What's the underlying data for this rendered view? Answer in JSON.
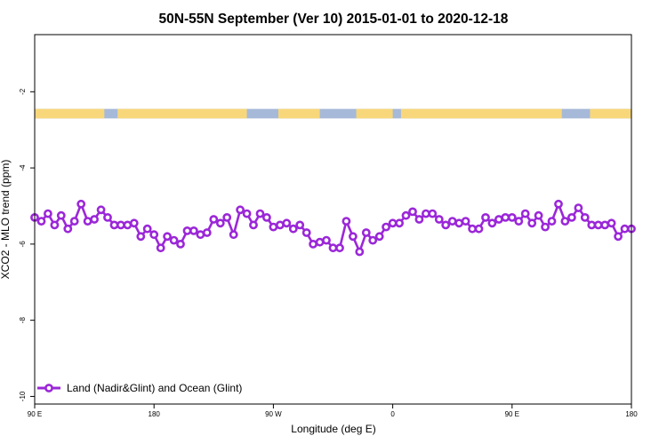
{
  "chart_data": {
    "type": "line",
    "title": "50N-55N September (Ver 10)   2015-01-01 to 2020-12-18",
    "xlabel": "Longitude (deg E)",
    "ylabel": "XCO2 - MLO trend (ppm)",
    "xlim": [
      90,
      450
    ],
    "ylim": [
      -10.2,
      -0.5
    ],
    "x_ticks": [
      {
        "value": 90,
        "label": "90 E"
      },
      {
        "value": 162,
        "label": "180"
      },
      {
        "value": 234,
        "label": "90 W"
      },
      {
        "value": 306,
        "label": "0"
      },
      {
        "value": 378,
        "label": "90 E"
      },
      {
        "value": 450,
        "label": "180"
      }
    ],
    "y_ticks": [
      {
        "value": -2,
        "label": "-2"
      },
      {
        "value": -4,
        "label": "-4"
      },
      {
        "value": -6,
        "label": "-6"
      },
      {
        "value": -8,
        "label": "-8"
      },
      {
        "value": -10,
        "label": "-10"
      }
    ],
    "land_ocean_band": {
      "y_range": [
        -2.7,
        -2.45
      ],
      "land_color": "#f8d77b",
      "ocean_color": "#a6b9d8",
      "land_segments": [
        [
          90,
          132
        ],
        [
          140,
          218
        ],
        [
          237,
          262
        ],
        [
          284,
          306
        ],
        [
          311,
          408
        ],
        [
          425,
          450
        ]
      ]
    },
    "series": [
      {
        "name": "Land (Nadir&Glint) and Ocean (Glint)",
        "color": "#9b27d8",
        "x": [
          90,
          94,
          98,
          102,
          106,
          110,
          114,
          118,
          122,
          126,
          130,
          134,
          138,
          142,
          146,
          150,
          154,
          158,
          162,
          166,
          170,
          174,
          178,
          182,
          186,
          190,
          194,
          198,
          202,
          206,
          210,
          214,
          218,
          222,
          226,
          230,
          234,
          238,
          242,
          246,
          250,
          254,
          258,
          262,
          266,
          270,
          274,
          278,
          282,
          286,
          290,
          294,
          298,
          302,
          306,
          310,
          314,
          318,
          322,
          326,
          330,
          334,
          338,
          342,
          346,
          350,
          354,
          358,
          362,
          366,
          370,
          374,
          378,
          382,
          386,
          390,
          394,
          398,
          402,
          406,
          410,
          414,
          418,
          422,
          426,
          430,
          434,
          438,
          442,
          446,
          450
        ],
        "y": [
          -5.3,
          -5.4,
          -5.2,
          -5.5,
          -5.25,
          -5.6,
          -5.4,
          -4.95,
          -5.4,
          -5.35,
          -5.1,
          -5.3,
          -5.5,
          -5.5,
          -5.5,
          -5.45,
          -5.8,
          -5.6,
          -5.75,
          -6.1,
          -5.8,
          -5.9,
          -6.0,
          -5.65,
          -5.65,
          -5.75,
          -5.7,
          -5.35,
          -5.45,
          -5.3,
          -5.75,
          -5.1,
          -5.2,
          -5.5,
          -5.2,
          -5.3,
          -5.55,
          -5.5,
          -5.45,
          -5.6,
          -5.5,
          -5.7,
          -6.0,
          -5.95,
          -5.9,
          -6.1,
          -6.1,
          -5.4,
          -5.8,
          -6.2,
          -5.7,
          -5.9,
          -5.8,
          -5.55,
          -5.45,
          -5.45,
          -5.25,
          -5.15,
          -5.35,
          -5.2,
          -5.2,
          -5.35,
          -5.5,
          -5.4,
          -5.45,
          -5.4,
          -5.6,
          -5.6,
          -5.3,
          -5.45,
          -5.35,
          -5.3,
          -5.3,
          -5.4,
          -5.2,
          -5.45,
          -5.25,
          -5.55,
          -5.4,
          -4.95,
          -5.4,
          -5.3,
          -5.05,
          -5.3,
          -5.5,
          -5.5,
          -5.5,
          -5.45,
          -5.8,
          -5.6,
          -5.6
        ]
      }
    ],
    "legend": {
      "position": "bottom-left"
    }
  }
}
